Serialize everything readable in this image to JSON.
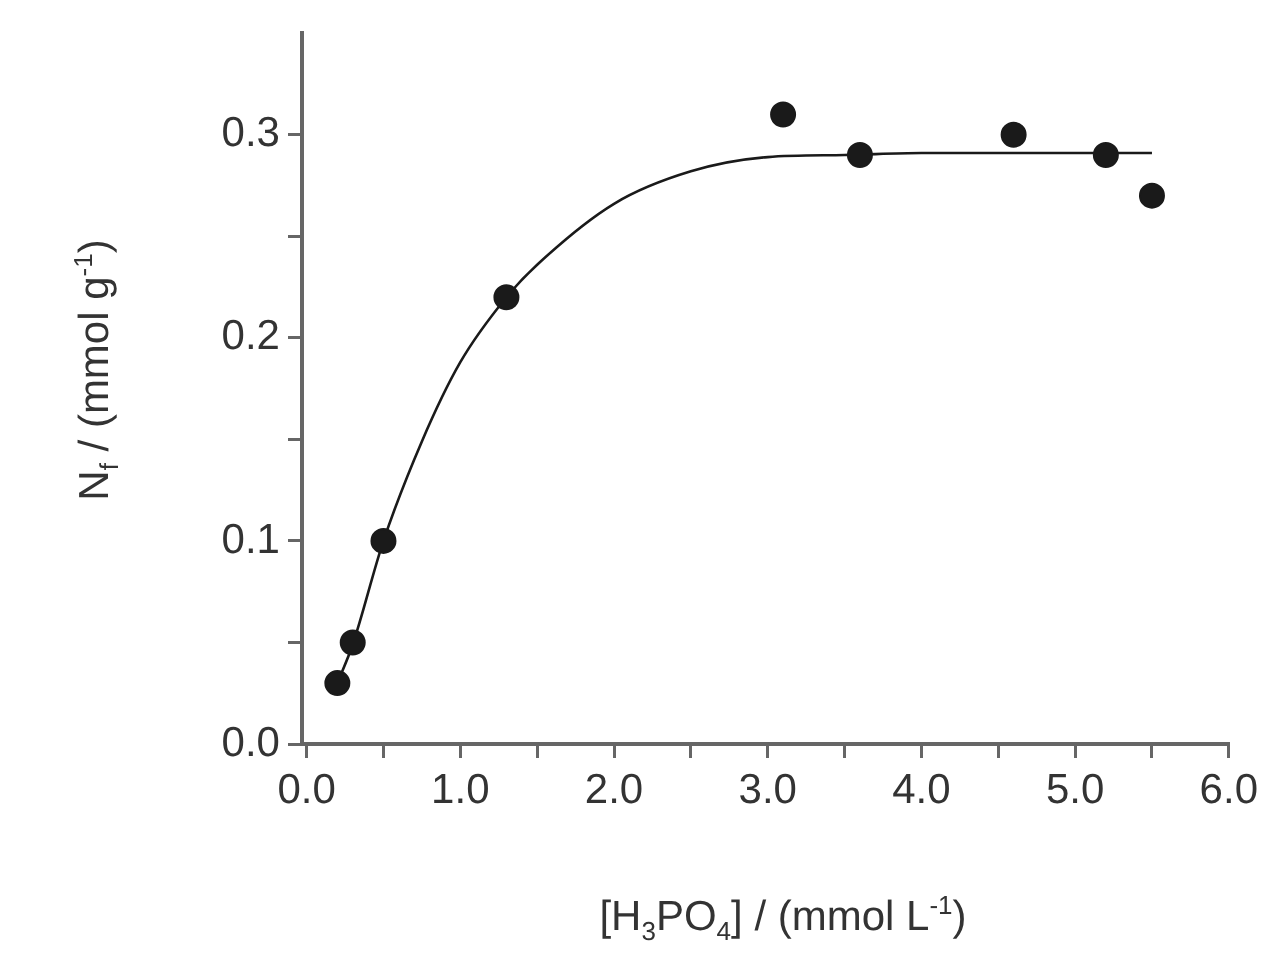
{
  "chart_data": {
    "type": "scatter",
    "xlabel": "[H$_{3}$PO$_{4}$] / (mmol L$^{-1}$)",
    "ylabel": "N$_{f}$ / (mmol g$^{-1}$)",
    "series": [
      {
        "type": "scatter",
        "color": "#1a1a1a",
        "marker": "circle",
        "x": [
          0.2,
          0.3,
          0.5,
          1.3,
          3.1,
          3.6,
          4.6,
          5.2,
          5.5
        ],
        "values": [
          0.03,
          0.05,
          0.1,
          0.22,
          0.31,
          0.29,
          0.3,
          0.29,
          0.27
        ]
      },
      {
        "type": "line",
        "color": "#1a1a1a",
        "marker": "none",
        "line_style": "solid",
        "x": [
          0.2,
          0.3,
          0.5,
          0.75,
          1.0,
          1.3,
          1.5,
          2.0,
          2.5,
          3.0,
          3.5,
          4.0,
          5.5
        ],
        "values": [
          0.03,
          0.049,
          0.1,
          0.149,
          0.188,
          0.22,
          0.236,
          0.266,
          0.282,
          0.289,
          0.29,
          0.291,
          0.291
        ]
      }
    ],
    "xlim": [
      -0.03,
      6.0
    ],
    "xticks": [
      {
        "value": 0,
        "label": "0.0"
      },
      {
        "value": 0.5,
        "label": null
      },
      {
        "value": 1,
        "label": "1.0"
      },
      {
        "value": 1.5,
        "label": null
      },
      {
        "value": 2,
        "label": "2.0"
      },
      {
        "value": 2.5,
        "label": null
      },
      {
        "value": 3,
        "label": "3.0"
      },
      {
        "value": 3.5,
        "label": null
      },
      {
        "value": 4,
        "label": "4.0"
      },
      {
        "value": 4.5,
        "label": null
      },
      {
        "value": 5,
        "label": "5.0"
      },
      {
        "value": 5.5,
        "label": null
      },
      {
        "value": 6,
        "label": "6.0"
      }
    ],
    "ylim": [
      0,
      0.35
    ],
    "yticks": [
      {
        "value": 0,
        "label": "0.0"
      },
      {
        "value": 0.05,
        "label": null
      },
      {
        "value": 0.1,
        "label": "0.1"
      },
      {
        "value": 0.15,
        "label": null
      },
      {
        "value": 0.2,
        "label": "0.2"
      },
      {
        "value": 0.25,
        "label": null
      },
      {
        "value": 0.3,
        "label": "0.3"
      }
    ],
    "grid": false,
    "legend": false
  }
}
